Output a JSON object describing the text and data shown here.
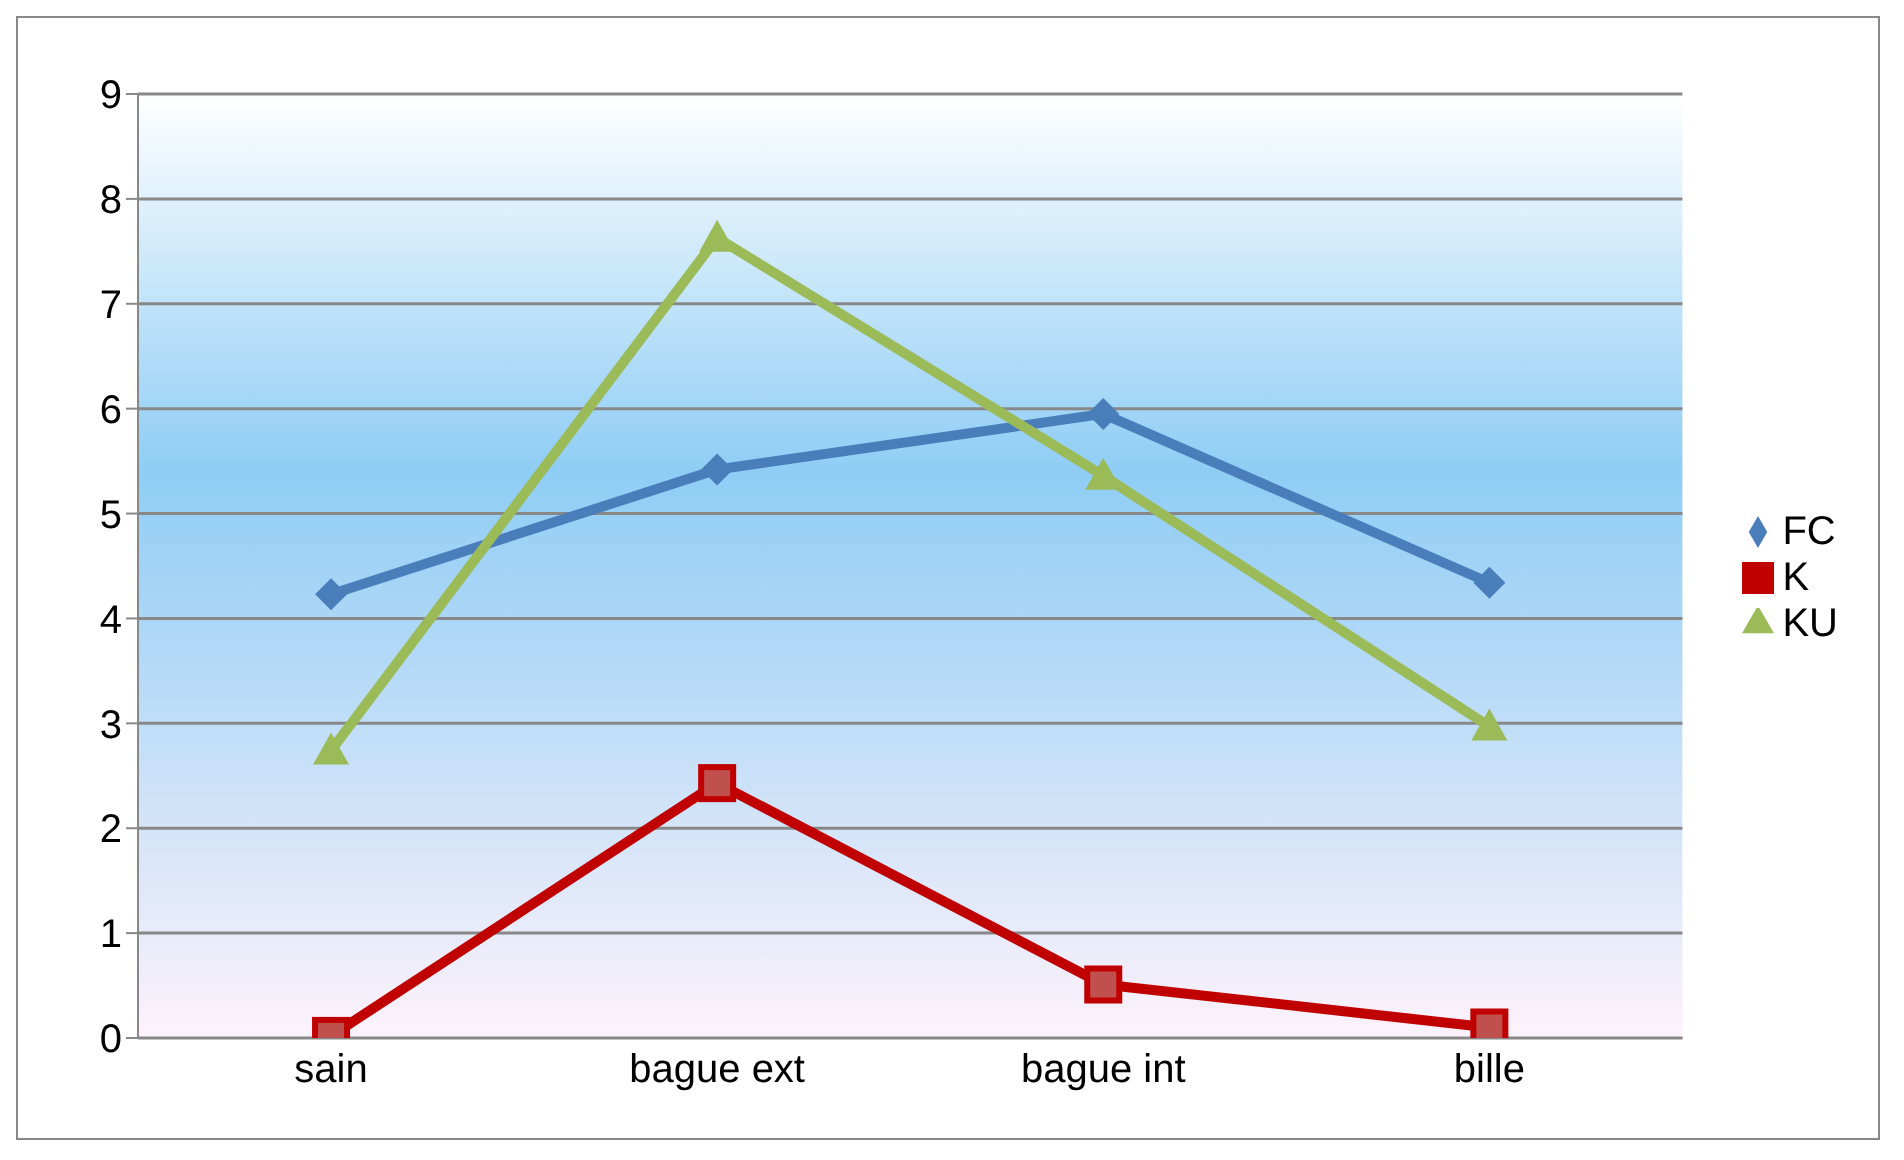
{
  "chart_data": {
    "type": "line",
    "categories": [
      "sain",
      "bague ext",
      "bague int",
      "bille"
    ],
    "series": [
      {
        "name": "FC",
        "color": "#4a7ebb",
        "marker": "diamond",
        "values": [
          4.23,
          5.42,
          5.95,
          4.34
        ]
      },
      {
        "name": "K",
        "color": "#c00000",
        "marker": "square",
        "values": [
          0.02,
          2.43,
          0.51,
          0.1
        ]
      },
      {
        "name": "KU",
        "color": "#9bbb59",
        "marker": "triangle",
        "values": [
          2.74,
          7.63,
          5.36,
          2.97
        ]
      }
    ],
    "ylim": [
      0,
      9
    ],
    "yticks": [
      0,
      1,
      2,
      3,
      4,
      5,
      6,
      7,
      8,
      9
    ],
    "grid": "y",
    "legend": "right",
    "line_style": "solid"
  }
}
